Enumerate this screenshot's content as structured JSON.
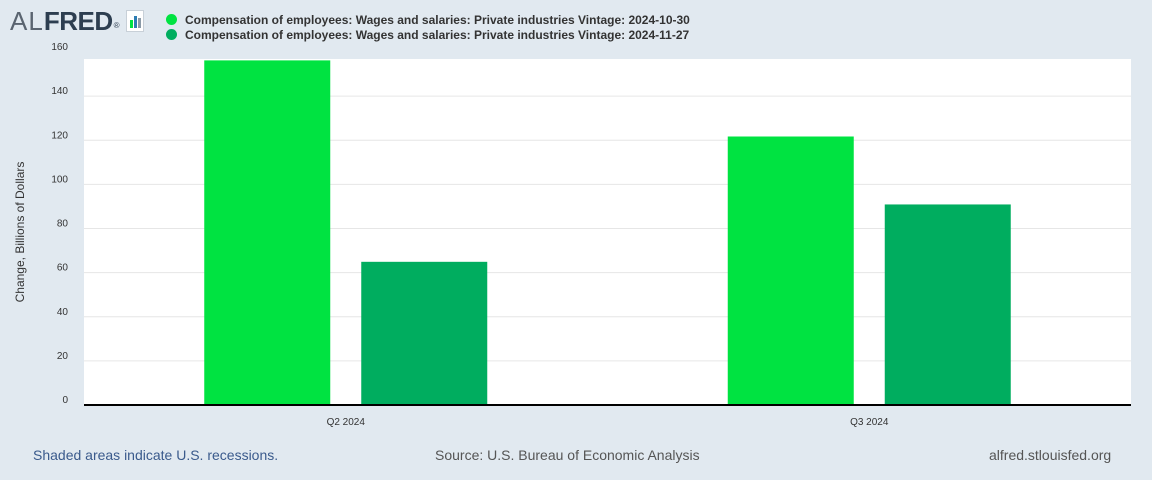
{
  "logo": {
    "al": "AL",
    "fred": "FRED",
    "reg": "®"
  },
  "legend": [
    {
      "label": "Compensation of employees: Wages and salaries: Private industries Vintage: 2024-10-30",
      "color": "#00e341"
    },
    {
      "label": "Compensation of employees: Wages and salaries: Private industries Vintage: 2024-11-27",
      "color": "#00ad5f"
    }
  ],
  "footer": {
    "left": "Shaded areas indicate U.S. recessions.",
    "center": "Source: U.S. Bureau of Economic Analysis",
    "right": "alfred.stlouisfed.org"
  },
  "chart_data": {
    "type": "bar",
    "categories": [
      "Q2 2024",
      "Q3 2024"
    ],
    "series": [
      {
        "name": "Compensation of employees: Wages and salaries: Private industries Vintage: 2024-10-30",
        "values": [
          156.2,
          121.7
        ],
        "color": "#00e341"
      },
      {
        "name": "Compensation of employees: Wages and salaries: Private industries Vintage: 2024-11-27",
        "values": [
          64.9,
          90.9
        ],
        "color": "#00ad5f"
      }
    ],
    "title": "",
    "xlabel": "",
    "ylabel": "Change, Billions of Dollars",
    "ylim": [
      0,
      160
    ],
    "yticks": [
      0,
      20,
      40,
      60,
      80,
      100,
      120,
      140,
      160
    ],
    "yticklabels": [
      "0",
      "20",
      "40",
      "60",
      "80",
      "100",
      "120",
      "140",
      "160"
    ],
    "grid": true,
    "legend_position": "top-left"
  }
}
